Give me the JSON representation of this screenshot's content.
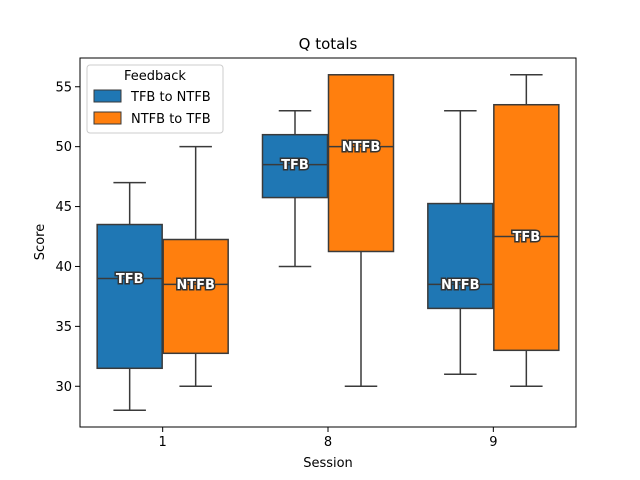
{
  "chart_data": {
    "type": "box",
    "title": "Q totals",
    "xlabel": "Session",
    "ylabel": "Score",
    "ylim": [
      26.6,
      57.4
    ],
    "yticks": [
      30,
      35,
      40,
      45,
      50,
      55
    ],
    "categories": [
      "1",
      "8",
      "9"
    ],
    "legend": {
      "title": "Feedback",
      "placement": "top-left"
    },
    "series": [
      {
        "name": "TFB to NTFB",
        "color": "#1f77b4",
        "boxes": [
          {
            "whisker_low": 28,
            "q1": 31.5,
            "median": 39,
            "q3": 43.5,
            "whisker_high": 47,
            "label": "TFB"
          },
          {
            "whisker_low": 40,
            "q1": 45.75,
            "median": 48.5,
            "q3": 51,
            "whisker_high": 53,
            "label": "TFB"
          },
          {
            "whisker_low": 31,
            "q1": 36.5,
            "median": 38.5,
            "q3": 45.25,
            "whisker_high": 53,
            "label": "NTFB"
          }
        ]
      },
      {
        "name": "NTFB to TFB",
        "color": "#ff7f0e",
        "boxes": [
          {
            "whisker_low": 30,
            "q1": 32.75,
            "median": 38.5,
            "q3": 42.25,
            "whisker_high": 50,
            "label": "NTFB"
          },
          {
            "whisker_low": 30,
            "q1": 41.25,
            "median": 50,
            "q3": 56,
            "whisker_high": 56,
            "label": "NTFB"
          },
          {
            "whisker_low": 30,
            "q1": 33,
            "median": 42.5,
            "q3": 53.5,
            "whisker_high": 56,
            "label": "TFB"
          }
        ]
      }
    ]
  }
}
